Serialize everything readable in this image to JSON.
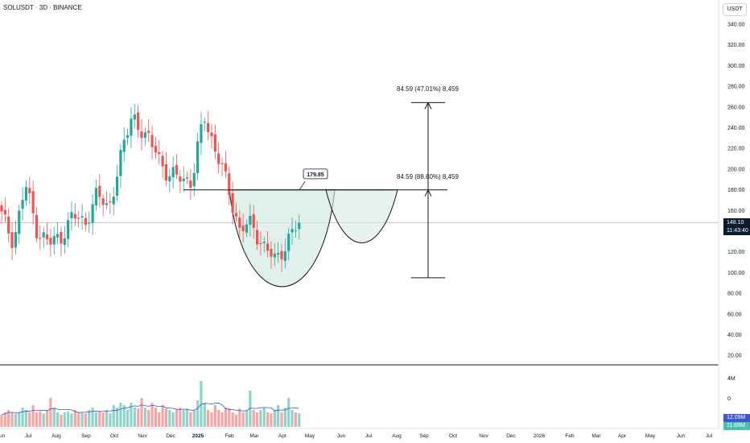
{
  "header": {
    "symbol_line": "SOLUSDT · 3D · BINANCE",
    "currency": "USDT"
  },
  "price_scale": {
    "ticks": [
      "340.00",
      "320.00",
      "300.00",
      "280.00",
      "260.00",
      "240.00",
      "220.00",
      "200.00",
      "180.00",
      "160.00",
      "140.00",
      "120.00",
      "100.00",
      "80.00",
      "60.00",
      "40.00",
      "20.00"
    ],
    "current_price": "148.10",
    "countdown": "11:43:40"
  },
  "volume_scale": {
    "ticks": [
      "4M",
      "0"
    ],
    "ma_label": "12.09M",
    "vol_label": "11.69M"
  },
  "time_axis": {
    "labels": [
      "Jun",
      "Jul",
      "Aug",
      "Sep",
      "Oct",
      "Nov",
      "Dec",
      "2025",
      "Feb",
      "Mar",
      "Apr",
      "May",
      "Jun",
      "Jul",
      "Aug",
      "Sep",
      "Oct",
      "Nov",
      "Dec",
      "2026",
      "Feb",
      "Mar",
      "Apr",
      "May",
      "Jun",
      "Jul"
    ],
    "bold_label": "2025"
  },
  "annotations": {
    "neckline_price": "179.85",
    "target_upper": "84.59 (47.01%) 8,459",
    "target_lower": "84.59 (88.80%) 8,459"
  },
  "colors": {
    "up": "#26a69a",
    "down": "#ef5350",
    "cup_fill": "#d8ebe6",
    "price_badge": "#0b1b2e",
    "volume_ma": "#3b57d6"
  },
  "chart_data": {
    "type": "candlestick",
    "title": "SOLUSDT · 3D · BINANCE",
    "ylim": [
      0,
      350
    ],
    "y_scale": "linear",
    "grid": false,
    "anchor_points": [
      {
        "date": "Jun",
        "price": 155
      },
      {
        "date": "Jul",
        "price": 130
      },
      {
        "date": "Aug",
        "price": 185
      },
      {
        "date": "Aug",
        "price": 140
      },
      {
        "date": "Sep",
        "price": 128
      },
      {
        "date": "Sep",
        "price": 135
      },
      {
        "date": "Oct",
        "price": 155
      },
      {
        "date": "Oct",
        "price": 148
      },
      {
        "date": "Oct",
        "price": 175
      },
      {
        "date": "Nov",
        "price": 162
      },
      {
        "date": "Nov",
        "price": 210
      },
      {
        "date": "Nov",
        "price": 255
      },
      {
        "date": "Dec",
        "price": 230
      },
      {
        "date": "Dec",
        "price": 220
      },
      {
        "date": "Dec",
        "price": 190
      },
      {
        "date": "Dec",
        "price": 195
      },
      {
        "date": "2025",
        "price": 185
      },
      {
        "date": "2025",
        "price": 255
      },
      {
        "date": "Feb",
        "price": 215
      },
      {
        "date": "Feb",
        "price": 185
      },
      {
        "date": "Mar",
        "price": 140
      },
      {
        "date": "Mar",
        "price": 148
      },
      {
        "date": "Mar",
        "price": 125
      },
      {
        "date": "Apr",
        "price": 112
      },
      {
        "date": "Apr",
        "price": 130
      },
      {
        "date": "Apr",
        "price": 148
      }
    ],
    "volume_relative": [
      0.25,
      0.3,
      0.35,
      0.3,
      0.28,
      0.3,
      0.4,
      0.35,
      0.3,
      0.45,
      0.3,
      0.32,
      0.28,
      0.35,
      0.6,
      0.4,
      0.3,
      0.25,
      0.3,
      0.32,
      0.28,
      0.35,
      0.3,
      0.3,
      0.28,
      0.35,
      0.4,
      0.3,
      0.32,
      0.3,
      0.35,
      0.28,
      0.45,
      0.4,
      0.5,
      0.45,
      0.35,
      0.5,
      0.4,
      0.38,
      0.6,
      0.4,
      0.35,
      0.5,
      0.4,
      0.3,
      0.45,
      0.38,
      0.35,
      0.3,
      0.35,
      0.4,
      0.35,
      0.38,
      0.3,
      0.35,
      0.55,
      0.95,
      0.5,
      0.35,
      0.3,
      0.45,
      0.35,
      0.3,
      0.4,
      0.38,
      0.3,
      0.25,
      0.38,
      0.3,
      0.35,
      0.75,
      0.35,
      0.3,
      0.35,
      0.4,
      0.3,
      0.28,
      0.35,
      0.45,
      0.3,
      0.4,
      0.6,
      0.35,
      0.3,
      0.28
    ],
    "cup_and_handle": {
      "neckline": 179.85,
      "cup_bottom": 98,
      "handle_bottom": 135
    },
    "measure": {
      "from": 95,
      "to": 264.2,
      "neckline": 179.85,
      "change": 84.59
    }
  }
}
